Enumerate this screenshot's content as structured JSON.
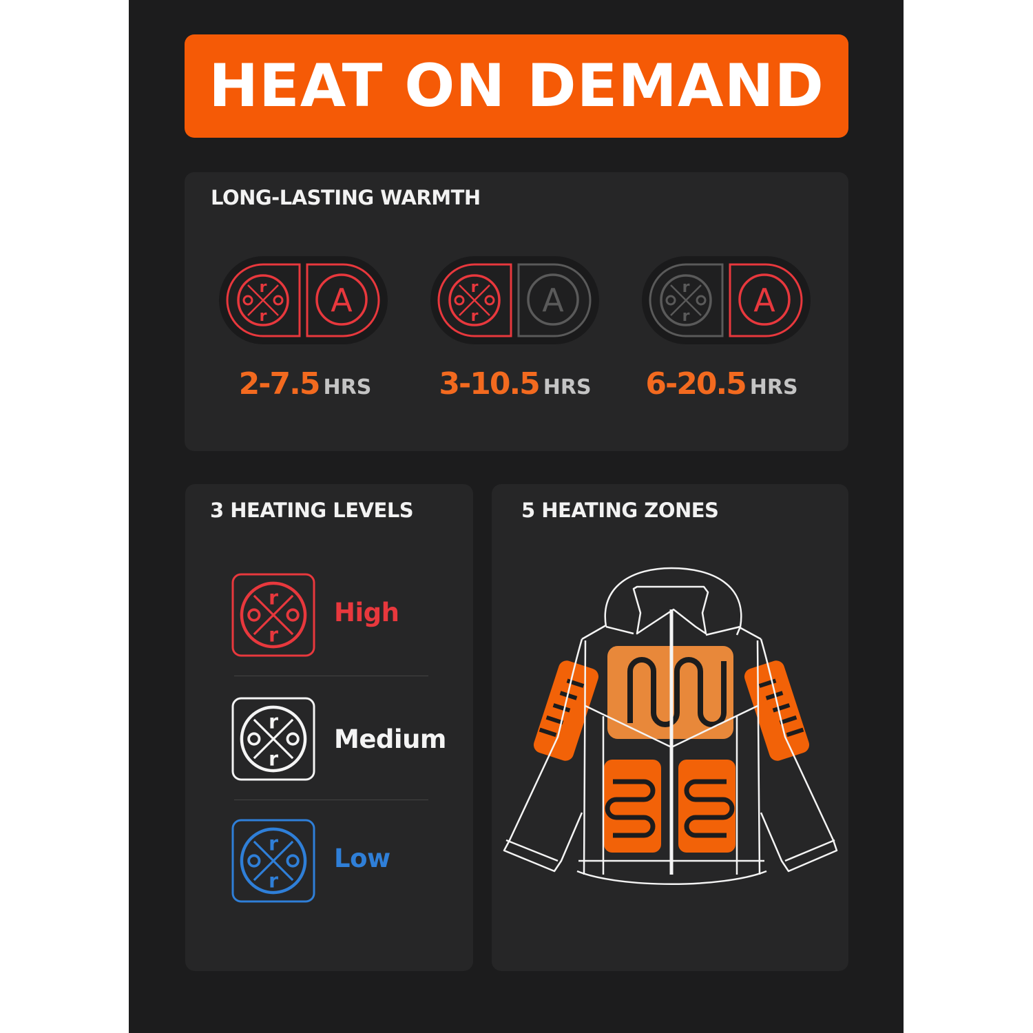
{
  "banner": {
    "title": "HEAT ON DEMAND"
  },
  "warmth": {
    "title": "LONG-LASTING WARMTH",
    "modes": [
      {
        "range": "2-7.5",
        "unit": "HRS",
        "heat_button": "active",
        "auto_button": "active"
      },
      {
        "range": "3-10.5",
        "unit": "HRS",
        "heat_button": "active",
        "auto_button": "inactive"
      },
      {
        "range": "6-20.5",
        "unit": "HRS",
        "heat_button": "inactive",
        "auto_button": "active"
      }
    ],
    "auto_letter": "A"
  },
  "levels": {
    "title": "3 HEATING LEVELS",
    "items": [
      {
        "label": "High",
        "color": "#e8383d"
      },
      {
        "label": "Medium",
        "color": "#f4f4f4"
      },
      {
        "label": "Low",
        "color": "#2f7fd8"
      }
    ]
  },
  "zones": {
    "title": "5 HEATING ZONES",
    "count": 5,
    "zone_color": "#f26208"
  },
  "colors": {
    "accent": "#f55a06",
    "active": "#e8383d",
    "inactive": "#5a5a5a"
  }
}
